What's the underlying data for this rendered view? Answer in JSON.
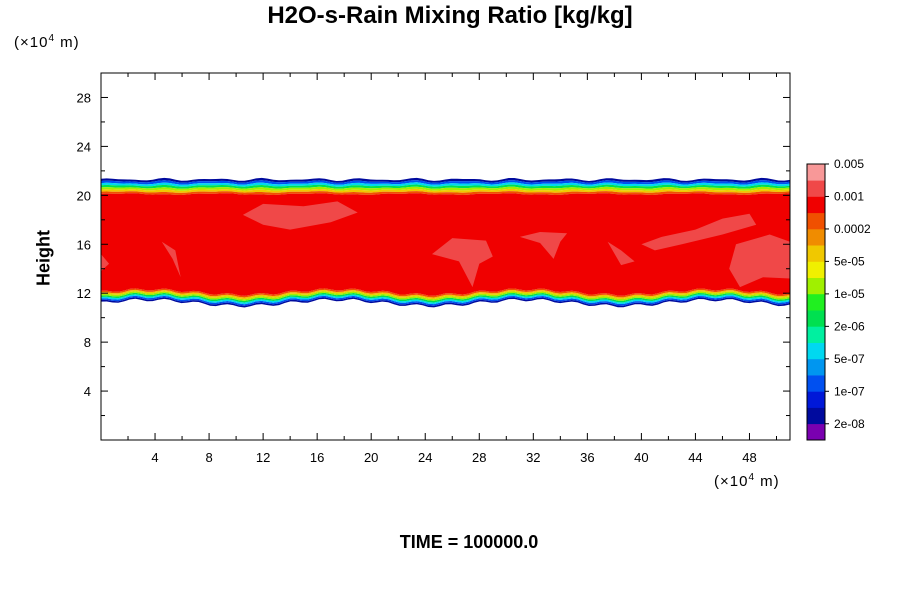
{
  "chart_data": {
    "type": "heatmap",
    "title": "H2O-s-Rain Mixing Ratio [kg/kg]",
    "ylabel": "Height",
    "x_unit": {
      "prefix": "(×10",
      "exp": "4",
      "suffix": " m)"
    },
    "y_unit": {
      "prefix": "(×10",
      "exp": "4",
      "suffix": " m)"
    },
    "time_label": "TIME = 100000.0",
    "xlim": [
      0,
      51
    ],
    "ylim": [
      0,
      30
    ],
    "x_ticks": [
      4,
      8,
      12,
      16,
      20,
      24,
      28,
      32,
      36,
      40,
      44,
      48
    ],
    "y_ticks": [
      4,
      8,
      12,
      16,
      20,
      24,
      28
    ],
    "field": {
      "top_edge_y": 21.3,
      "core_top_y": 20.1,
      "core_bottom_y": 12.1,
      "bottom_edge_y": 11.2,
      "core_value": 0.001,
      "patch_value": 0.005
    },
    "colorbar": {
      "colors": [
        "#7a00b0",
        "#000a9e",
        "#0018d8",
        "#0050f0",
        "#0096f0",
        "#00d8f0",
        "#00f0a0",
        "#00e050",
        "#20f020",
        "#a0f000",
        "#f0f000",
        "#f0c800",
        "#f08c00",
        "#f05000",
        "#f00000",
        "#f04848",
        "#f89898"
      ],
      "labels": [
        "2e-08",
        "1e-07",
        "5e-07",
        "2e-06",
        "1e-05",
        "5e-05",
        "0.0002",
        "0.001",
        "0.005"
      ]
    }
  }
}
